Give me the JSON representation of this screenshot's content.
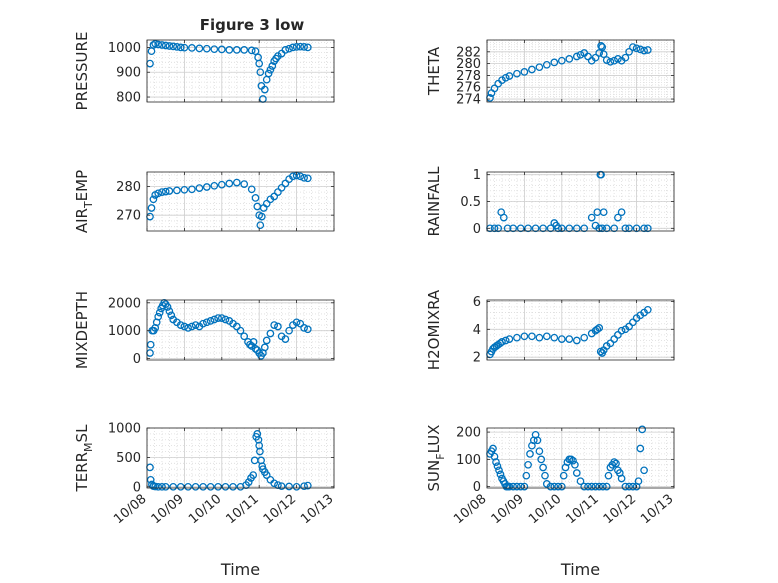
{
  "figure": {
    "title": "Figure 3 low",
    "x_tick_labels": [
      "10/08",
      "10/09",
      "10/10",
      "10/11",
      "10/12",
      "10/13"
    ],
    "xlabel": "Time",
    "marker_color": "#0072BD"
  },
  "chart_data": [
    {
      "type": "scatter",
      "title": "Figure 3 low",
      "ylabel": "PRESSURE",
      "ylim": [
        780,
        1030
      ],
      "yticks": [
        800,
        900,
        1000
      ],
      "grid": true,
      "xlim": [
        "10/08",
        "10/13"
      ],
      "xlabel": "",
      "x_days": [
        0.08,
        0.12,
        0.17,
        0.22,
        0.3,
        0.4,
        0.5,
        0.6,
        0.7,
        0.8,
        0.9,
        1.0,
        1.2,
        1.4,
        1.6,
        1.8,
        2.0,
        2.2,
        2.4,
        2.6,
        2.8,
        2.9,
        2.97,
        3.0,
        3.03,
        3.06,
        3.1,
        3.15,
        3.2,
        3.25,
        3.3,
        3.35,
        3.4,
        3.45,
        3.5,
        3.6,
        3.7,
        3.8,
        3.9,
        4.0,
        4.1,
        4.2,
        4.3
      ],
      "values": [
        935,
        985,
        1010,
        1015,
        1012,
        1010,
        1008,
        1006,
        1004,
        1002,
        1000,
        999,
        998,
        996,
        995,
        993,
        992,
        990,
        990,
        990,
        988,
        985,
        960,
        935,
        900,
        845,
        792,
        830,
        870,
        895,
        910,
        925,
        945,
        955,
        965,
        975,
        990,
        995,
        1000,
        1002,
        1003,
        1002,
        1000
      ]
    },
    {
      "type": "scatter",
      "title": "",
      "ylabel": "THETA",
      "ylim": [
        273.5,
        284
      ],
      "yticks": [
        274,
        276,
        278,
        280,
        282
      ],
      "grid": true,
      "xlim": [
        "10/08",
        "10/13"
      ],
      "xlabel": "",
      "x_days": [
        0.08,
        0.12,
        0.2,
        0.3,
        0.4,
        0.5,
        0.6,
        0.8,
        1.0,
        1.2,
        1.4,
        1.6,
        1.8,
        2.0,
        2.2,
        2.4,
        2.5,
        2.6,
        2.7,
        2.8,
        2.9,
        3.0,
        3.05,
        3.08,
        3.12,
        3.2,
        3.3,
        3.4,
        3.5,
        3.6,
        3.7,
        3.8,
        3.9,
        4.0,
        4.1,
        4.2,
        4.3
      ],
      "values": [
        274.2,
        275.0,
        275.8,
        276.6,
        277.2,
        277.6,
        277.9,
        278.3,
        278.6,
        279.0,
        279.4,
        279.8,
        280.2,
        280.5,
        280.8,
        281.2,
        281.5,
        281.8,
        281.2,
        280.5,
        281.0,
        281.8,
        283.0,
        282.8,
        281.6,
        280.6,
        280.3,
        280.5,
        280.8,
        280.5,
        281.0,
        282.0,
        282.8,
        282.6,
        282.4,
        282.2,
        282.3
      ]
    },
    {
      "type": "scatter",
      "title": "",
      "ylabel": "AIR_TEMP",
      "ylim": [
        264.5,
        285
      ],
      "yticks": [
        270,
        280
      ],
      "grid": true,
      "xlim": [
        "10/08",
        "10/13"
      ],
      "xlabel": "",
      "x_days": [
        0.08,
        0.12,
        0.17,
        0.22,
        0.3,
        0.4,
        0.5,
        0.6,
        0.8,
        1.0,
        1.2,
        1.4,
        1.6,
        1.8,
        2.0,
        2.2,
        2.4,
        2.6,
        2.8,
        2.9,
        2.95,
        3.0,
        3.03,
        3.07,
        3.12,
        3.2,
        3.3,
        3.4,
        3.5,
        3.6,
        3.7,
        3.8,
        3.9,
        4.0,
        4.1,
        4.2,
        4.3
      ],
      "values": [
        269.5,
        272.5,
        275.5,
        277.0,
        277.6,
        278.0,
        278.2,
        278.4,
        278.6,
        278.8,
        279.0,
        279.4,
        279.8,
        280.2,
        280.6,
        281.0,
        281.3,
        280.8,
        279.0,
        276.0,
        273.0,
        270.0,
        266.5,
        269.5,
        272.5,
        274.0,
        275.5,
        276.5,
        278.0,
        279.5,
        281.0,
        282.5,
        283.5,
        283.8,
        283.5,
        283.0,
        282.8
      ]
    },
    {
      "type": "scatter",
      "title": "",
      "ylabel": "RAINFALL",
      "ylim": [
        -0.05,
        1.05
      ],
      "yticks": [
        0,
        0.5,
        1
      ],
      "grid": true,
      "xlim": [
        "10/08",
        "10/13"
      ],
      "xlabel": "",
      "x_days": [
        0.08,
        0.2,
        0.3,
        0.38,
        0.45,
        0.55,
        0.7,
        0.9,
        1.1,
        1.3,
        1.5,
        1.7,
        1.8,
        1.85,
        1.9,
        2.0,
        2.2,
        2.4,
        2.6,
        2.8,
        2.9,
        2.95,
        3.0,
        3.03,
        3.05,
        3.08,
        3.12,
        3.2,
        3.4,
        3.5,
        3.6,
        3.7,
        3.8,
        4.0,
        4.2,
        4.3
      ],
      "values": [
        0,
        0,
        0,
        0.3,
        0.2,
        0,
        0,
        0,
        0,
        0,
        0,
        0,
        0.1,
        0.05,
        0,
        0,
        0,
        0,
        0,
        0.2,
        0.05,
        0.3,
        0,
        1.0,
        1.0,
        0,
        0.3,
        0,
        0,
        0.2,
        0.3,
        0,
        0,
        0,
        0,
        0
      ]
    },
    {
      "type": "scatter",
      "title": "",
      "ylabel": "MIXDEPTH",
      "ylim": [
        -50,
        2100
      ],
      "yticks": [
        0,
        1000,
        2000
      ],
      "grid": true,
      "xlim": [
        "10/08",
        "10/13"
      ],
      "xlabel": "",
      "x_days": [
        0.08,
        0.1,
        0.14,
        0.18,
        0.22,
        0.26,
        0.3,
        0.34,
        0.38,
        0.42,
        0.46,
        0.5,
        0.55,
        0.6,
        0.65,
        0.7,
        0.8,
        0.9,
        1.0,
        1.1,
        1.2,
        1.3,
        1.4,
        1.5,
        1.6,
        1.7,
        1.8,
        1.9,
        2.0,
        2.1,
        2.2,
        2.3,
        2.4,
        2.5,
        2.6,
        2.7,
        2.75,
        2.8,
        2.85,
        2.9,
        2.95,
        3.0,
        3.05,
        3.1,
        3.15,
        3.2,
        3.3,
        3.4,
        3.5,
        3.6,
        3.7,
        3.8,
        3.9,
        4.0,
        4.1,
        4.2,
        4.3
      ],
      "values": [
        200,
        500,
        1000,
        1000,
        1100,
        1300,
        1500,
        1650,
        1800,
        1900,
        2000,
        1950,
        1850,
        1700,
        1550,
        1400,
        1300,
        1200,
        1150,
        1100,
        1150,
        1200,
        1150,
        1250,
        1300,
        1350,
        1400,
        1450,
        1450,
        1400,
        1350,
        1250,
        1150,
        1000,
        800,
        600,
        500,
        450,
        600,
        350,
        300,
        200,
        100,
        200,
        400,
        650,
        900,
        1200,
        1150,
        800,
        700,
        1000,
        1200,
        1300,
        1250,
        1100,
        1050
      ]
    },
    {
      "type": "scatter",
      "title": "",
      "ylabel": "H2OMIXRA",
      "ylim": [
        1.8,
        6.1
      ],
      "yticks": [
        2,
        4,
        6
      ],
      "grid": true,
      "xlim": [
        "10/08",
        "10/13"
      ],
      "xlabel": "",
      "x_days": [
        0.08,
        0.12,
        0.16,
        0.2,
        0.25,
        0.3,
        0.35,
        0.4,
        0.5,
        0.6,
        0.8,
        1.0,
        1.2,
        1.4,
        1.6,
        1.8,
        2.0,
        2.2,
        2.4,
        2.6,
        2.8,
        2.9,
        2.95,
        3.0,
        3.04,
        3.08,
        3.12,
        3.2,
        3.3,
        3.4,
        3.5,
        3.6,
        3.7,
        3.8,
        3.9,
        4.0,
        4.1,
        4.2,
        4.3
      ],
      "values": [
        2.2,
        2.4,
        2.6,
        2.7,
        2.8,
        2.9,
        3.0,
        3.1,
        3.2,
        3.3,
        3.4,
        3.5,
        3.5,
        3.4,
        3.5,
        3.4,
        3.3,
        3.3,
        3.2,
        3.4,
        3.7,
        3.9,
        4.0,
        4.1,
        2.4,
        2.3,
        2.5,
        2.8,
        3.0,
        3.3,
        3.6,
        3.9,
        4.0,
        4.2,
        4.5,
        4.8,
        5.0,
        5.2,
        5.4
      ]
    },
    {
      "type": "scatter",
      "title": "",
      "ylabel": "TERR_MSL",
      "ylim": [
        -20,
        1000
      ],
      "yticks": [
        0,
        500,
        1000
      ],
      "grid": true,
      "xlim": [
        "10/08",
        "10/13"
      ],
      "xlabel": "Time",
      "x_days": [
        0.08,
        0.1,
        0.13,
        0.17,
        0.22,
        0.3,
        0.4,
        0.5,
        0.7,
        0.9,
        1.1,
        1.3,
        1.5,
        1.7,
        1.9,
        2.1,
        2.3,
        2.5,
        2.65,
        2.72,
        2.78,
        2.84,
        2.88,
        2.92,
        2.95,
        2.98,
        3.0,
        3.02,
        3.05,
        3.08,
        3.1,
        3.15,
        3.2,
        3.3,
        3.4,
        3.5,
        3.6,
        3.8,
        4.0,
        4.2,
        4.3
      ],
      "values": [
        330,
        120,
        40,
        10,
        5,
        0,
        0,
        0,
        0,
        0,
        0,
        0,
        0,
        0,
        0,
        0,
        0,
        0,
        30,
        80,
        150,
        200,
        450,
        850,
        900,
        800,
        700,
        600,
        450,
        350,
        300,
        250,
        200,
        120,
        60,
        30,
        10,
        5,
        0,
        10,
        20
      ]
    },
    {
      "type": "scatter",
      "title": "",
      "ylabel": "SUN_FLUX",
      "ylim": [
        -5,
        215
      ],
      "yticks": [
        0,
        100,
        200
      ],
      "grid": true,
      "xlim": [
        "10/08",
        "10/13"
      ],
      "xlabel": "Time",
      "x_days": [
        0.08,
        0.12,
        0.16,
        0.2,
        0.24,
        0.28,
        0.32,
        0.36,
        0.4,
        0.44,
        0.48,
        0.52,
        0.56,
        0.6,
        0.7,
        0.8,
        0.9,
        1.0,
        1.05,
        1.1,
        1.15,
        1.2,
        1.25,
        1.3,
        1.35,
        1.4,
        1.45,
        1.5,
        1.55,
        1.6,
        1.7,
        1.8,
        1.9,
        2.0,
        2.05,
        2.1,
        2.15,
        2.2,
        2.25,
        2.3,
        2.35,
        2.4,
        2.5,
        2.6,
        2.7,
        2.8,
        2.9,
        3.0,
        3.1,
        3.2,
        3.25,
        3.3,
        3.35,
        3.4,
        3.45,
        3.5,
        3.55,
        3.6,
        3.7,
        3.8,
        3.9,
        4.0,
        4.05,
        4.1,
        4.15,
        4.2
      ],
      "values": [
        120,
        130,
        140,
        110,
        90,
        75,
        60,
        45,
        30,
        20,
        10,
        0,
        0,
        0,
        0,
        0,
        0,
        0,
        40,
        80,
        120,
        150,
        170,
        190,
        170,
        130,
        100,
        70,
        40,
        10,
        0,
        0,
        0,
        0,
        40,
        70,
        90,
        100,
        100,
        95,
        80,
        50,
        20,
        0,
        0,
        0,
        0,
        0,
        0,
        0,
        40,
        70,
        80,
        90,
        85,
        60,
        50,
        30,
        0,
        0,
        0,
        0,
        20,
        140,
        210,
        60
      ]
    }
  ]
}
